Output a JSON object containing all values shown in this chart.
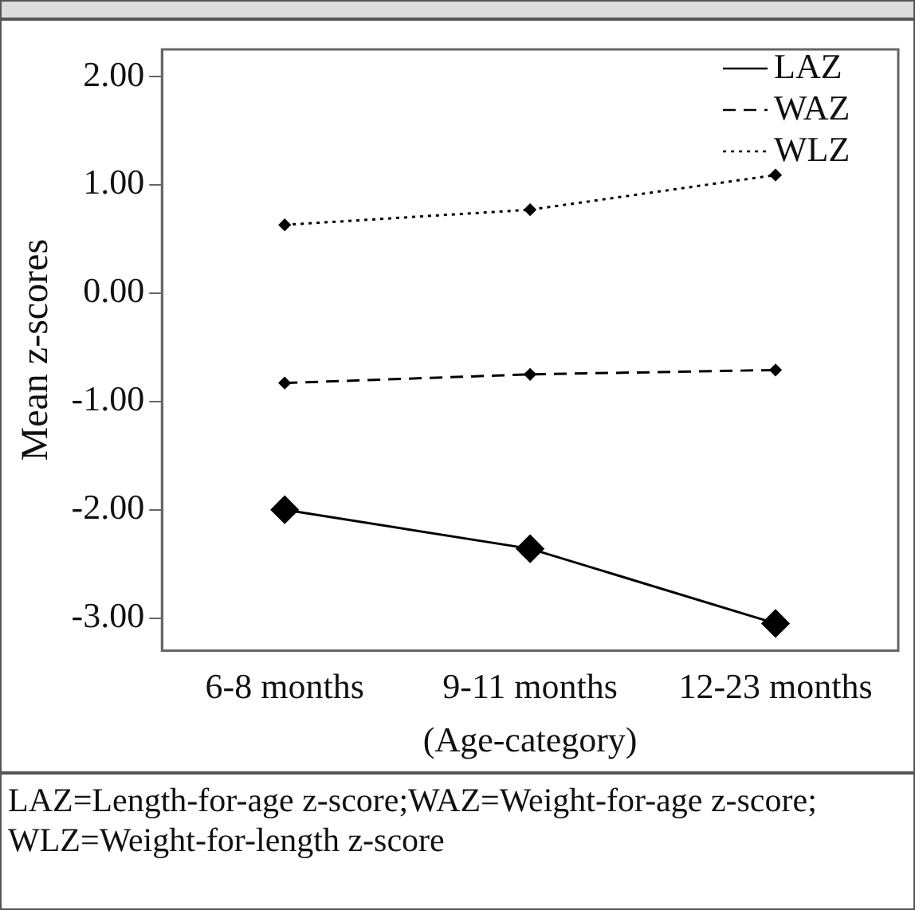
{
  "chart_data": {
    "type": "line",
    "xlabel": "(Age-category)",
    "ylabel": "Mean z-scores",
    "categories": [
      "6-8 months",
      "9-11 months",
      "12-23 months"
    ],
    "series": [
      {
        "name": "LAZ",
        "color": "#000000",
        "line_style": "solid",
        "values": [
          -2.0,
          -2.36,
          -3.05
        ]
      },
      {
        "name": "WAZ",
        "color": "#000000",
        "line_style": "dashed",
        "values": [
          -0.83,
          -0.75,
          -0.71
        ]
      },
      {
        "name": "WLZ",
        "color": "#000000",
        "line_style": "dotted",
        "values": [
          0.63,
          0.77,
          1.09
        ]
      }
    ],
    "ylim": [
      -3.3,
      2.25
    ],
    "yticks": [
      {
        "value": -3,
        "label": "-3.00"
      },
      {
        "value": -2,
        "label": "-2.00"
      },
      {
        "value": -1,
        "label": "-1.00"
      },
      {
        "value": 0,
        "label": "0.00"
      },
      {
        "value": 1,
        "label": "1.00"
      },
      {
        "value": 2,
        "label": "2.00"
      }
    ],
    "grid": false,
    "legend": "top right",
    "marker": "diamond",
    "annotations": [
      "LAZ=Length-for-age z-score;WAZ=Weight-for-age z-score; WLZ=Weight-for-length z-score"
    ]
  }
}
